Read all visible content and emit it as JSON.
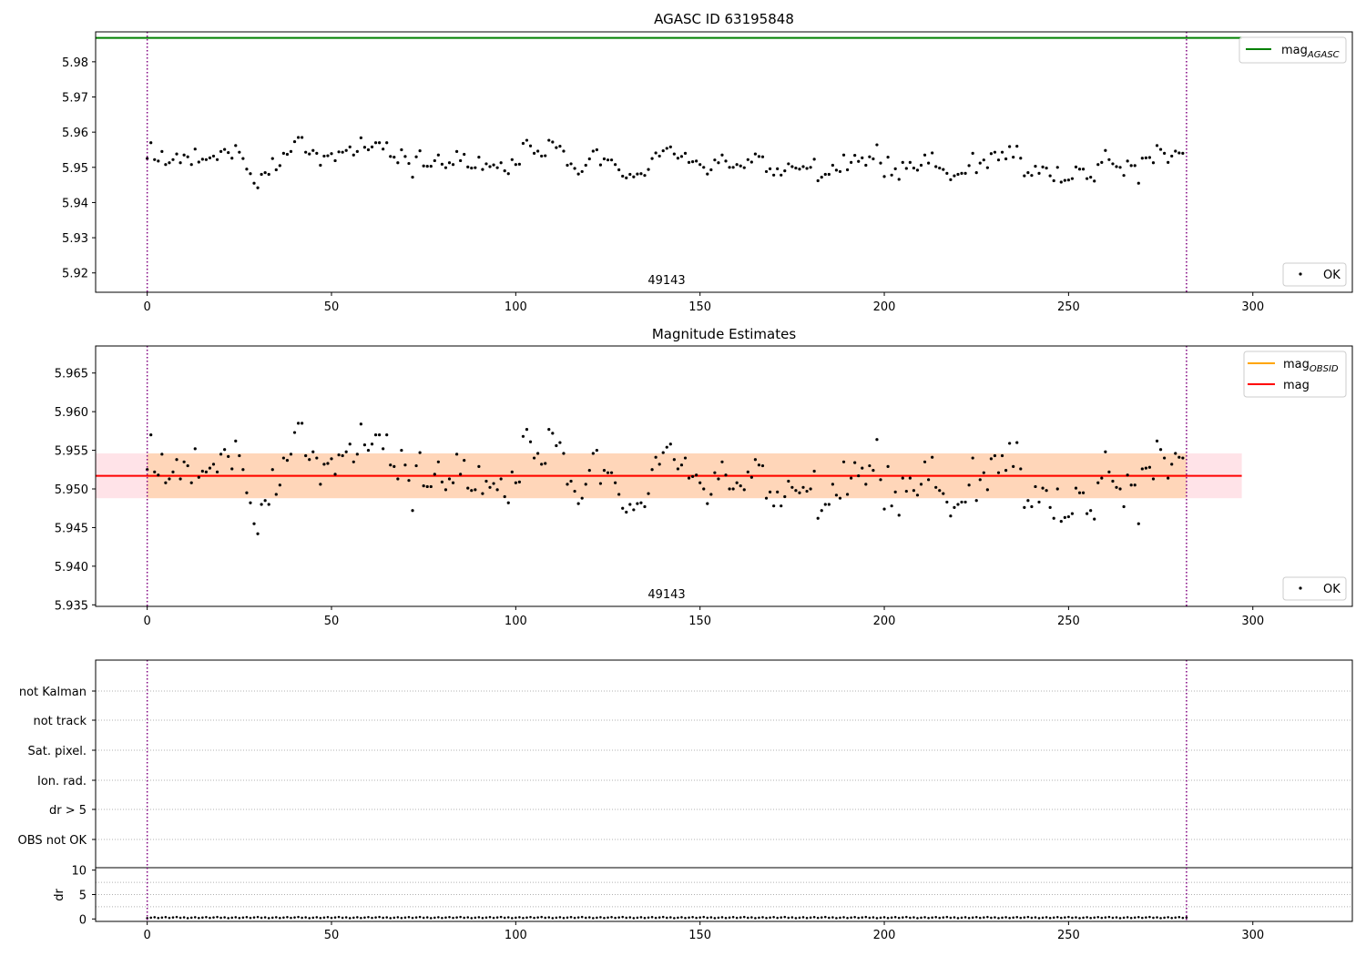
{
  "chart_data": [
    {
      "type": "scatter",
      "title": "AGASC ID 63195848",
      "xlim": [
        -14,
        327
      ],
      "ylim": [
        5.9145,
        5.9885
      ],
      "xticks": [
        0,
        50,
        100,
        150,
        200,
        250,
        300
      ],
      "yticks": [
        5.92,
        5.93,
        5.94,
        5.95,
        5.96,
        5.97,
        5.98
      ],
      "ytick_decimals": 2,
      "obs_label": "49143",
      "obs_boundaries": [
        0,
        282
      ],
      "lines": [
        {
          "name": "mag",
          "subscript": "AGASC",
          "color": "#008000",
          "y": 5.9868,
          "x_range": [
            -14,
            297
          ]
        }
      ],
      "legend_lines": {
        "position": "top-right",
        "entries": [
          {
            "label": "mag",
            "sub": "AGASC",
            "color": "#008000"
          }
        ]
      },
      "legend_points": {
        "position": "bottom-right",
        "label": "OK"
      },
      "series": [
        {
          "name": "OK",
          "color": "#000000"
        }
      ]
    },
    {
      "type": "scatter",
      "title": "Magnitude Estimates",
      "xlim": [
        -14,
        327
      ],
      "ylim": [
        5.9348,
        5.9685
      ],
      "xticks": [
        0,
        50,
        100,
        150,
        200,
        250,
        300
      ],
      "yticks": [
        5.935,
        5.94,
        5.945,
        5.95,
        5.955,
        5.96,
        5.965
      ],
      "ytick_decimals": 3,
      "obs_label": "49143",
      "obs_boundaries": [
        0,
        282
      ],
      "bands": [
        {
          "x_range": [
            -14,
            297
          ],
          "y_range": [
            5.9488,
            5.9546
          ],
          "color": "#ffc0cb",
          "opacity": 0.45
        },
        {
          "x_range": [
            0,
            282
          ],
          "y_range": [
            5.9488,
            5.9546
          ],
          "color": "#ffa500",
          "opacity": 0.2
        }
      ],
      "lines": [
        {
          "name": "mag_OBSID",
          "color": "#ffa500",
          "y": 5.9517,
          "x_range": [
            0,
            282
          ]
        },
        {
          "name": "mag",
          "color": "#ff0000",
          "y": 5.9517,
          "x_range": [
            -14,
            297
          ]
        }
      ],
      "legend_lines": {
        "position": "top-right",
        "entries": [
          {
            "label": "mag",
            "sub": "OBSID",
            "color": "#ffa500"
          },
          {
            "label": "mag",
            "sub": "",
            "color": "#ff0000"
          }
        ]
      },
      "legend_points": {
        "position": "bottom-right",
        "label": "OK"
      },
      "series": [
        {
          "name": "OK",
          "color": "#000000"
        }
      ]
    },
    {
      "type": "scatter",
      "title": "",
      "xlim": [
        -14,
        327
      ],
      "ylabel": "dr",
      "ylim": [
        -0.5,
        10.5
      ],
      "yticks": [
        0,
        5,
        10
      ],
      "xticks": [
        0,
        50,
        100,
        150,
        200,
        250,
        300
      ],
      "flag_labels": [
        "not Kalman",
        "not track",
        "Sat. pixel.",
        "Ion. rad.",
        "dr > 5",
        "OBS not OK"
      ],
      "obs_boundaries": [
        0,
        282
      ],
      "dr_values_approx": 0.3
    }
  ],
  "point_series": {
    "mag_estimates": [
      5.9525,
      5.957,
      5.9522,
      5.9518,
      5.9545,
      5.9508,
      5.9513,
      5.9522,
      5.9538,
      5.9513,
      5.9535,
      5.953,
      5.9508,
      5.9552,
      5.9515,
      5.9523,
      5.9522,
      5.9527,
      5.9532,
      5.9522,
      5.9545,
      5.9551,
      5.9542,
      5.9526,
      5.9562,
      5.9543,
      5.9525,
      5.9495,
      5.9482,
      5.9455,
      5.9442,
      5.948,
      5.9485,
      5.948,
      5.9525,
      5.9493,
      5.9505,
      5.954,
      5.9537,
      5.9545,
      5.9573,
      5.9585,
      5.9585,
      5.9543,
      5.9538,
      5.9548,
      5.954,
      5.9506,
      5.9532,
      5.9533,
      5.9539,
      5.9519,
      5.9544,
      5.9543,
      5.9548,
      5.9558,
      5.9535,
      5.9545,
      5.9584,
      5.9557,
      5.955,
      5.9558,
      5.957,
      5.957,
      5.9552,
      5.957,
      5.9531,
      5.9529,
      5.9513,
      5.955,
      5.9531,
      5.9511,
      5.9472,
      5.953,
      5.9547,
      5.9504,
      5.9503,
      5.9503,
      5.9519,
      5.9535,
      5.9509,
      5.9499,
      5.9513,
      5.9508,
      5.9545,
      5.9519,
      5.9537,
      5.9501,
      5.9498,
      5.9499,
      5.9529,
      5.9494,
      5.951,
      5.9502,
      5.9507,
      5.9499,
      5.9513,
      5.949,
      5.9482,
      5.9522,
      5.9508,
      5.9509,
      5.9568,
      5.9577,
      5.9561,
      5.954,
      5.9546,
      5.9532,
      5.9533,
      5.9577,
      5.9572,
      5.9556,
      5.956,
      5.9546,
      5.9506,
      5.951,
      5.9497,
      5.9481,
      5.9488,
      5.9506,
      5.9524,
      5.9546,
      5.955,
      5.9507,
      5.9524,
      5.9521,
      5.9521,
      5.9508,
      5.9493,
      5.9475,
      5.947,
      5.948,
      5.9473,
      5.9481,
      5.9482,
      5.9477,
      5.9494,
      5.9525,
      5.9541,
      5.9532,
      5.9547,
      5.9554,
      5.9558,
      5.9538,
      5.9526,
      5.9531,
      5.954,
      5.9514,
      5.9516,
      5.9518,
      5.9508,
      5.95,
      5.9481,
      5.9493,
      5.9521,
      5.9513,
      5.9535,
      5.9518,
      5.95,
      5.95,
      5.9508,
      5.9504,
      5.9499,
      5.9522,
      5.9515,
      5.9538,
      5.9531,
      5.953,
      5.9488,
      5.9496,
      5.9478,
      5.9496,
      5.9478,
      5.949,
      5.951,
      5.9502,
      5.9498,
      5.9495,
      5.9502,
      5.9497,
      5.95,
      5.9523,
      5.9462,
      5.9472,
      5.948,
      5.948,
      5.9506,
      5.9492,
      5.9488,
      5.9535,
      5.9493,
      5.9514,
      5.9534,
      5.9517,
      5.9527,
      5.9506,
      5.953,
      5.9524,
      5.9564,
      5.9512,
      5.9474,
      5.9529,
      5.9478,
      5.9496,
      5.9466,
      5.9514,
      5.9497,
      5.9514,
      5.9498,
      5.9492,
      5.9506,
      5.9535,
      5.9512,
      5.9541,
      5.9502,
      5.9498,
      5.9494,
      5.9483,
      5.9465,
      5.9476,
      5.948,
      5.9483,
      5.9483,
      5.9505,
      5.954,
      5.9485,
      5.9512,
      5.9521,
      5.9499,
      5.9539,
      5.9543,
      5.9521,
      5.9543,
      5.9524,
      5.9559,
      5.9529,
      5.956,
      5.9526,
      5.9476,
      5.9485,
      5.9477,
      5.9503,
      5.9483,
      5.9501,
      5.9498,
      5.9476,
      5.9462,
      5.95,
      5.9458,
      5.9463,
      5.9464,
      5.9468,
      5.9501,
      5.9495,
      5.9495,
      5.9468,
      5.9472,
      5.9461,
      5.9508,
      5.9514,
      5.9548,
      5.9522,
      5.951,
      5.9502,
      5.95,
      5.9477,
      5.9518,
      5.9505,
      5.9505,
      5.9455,
      5.9526,
      5.9527,
      5.9528,
      5.9513,
      5.9562,
      5.9551,
      5.954,
      5.9514,
      5.9532,
      5.9546,
      5.9541,
      5.954
    ]
  }
}
